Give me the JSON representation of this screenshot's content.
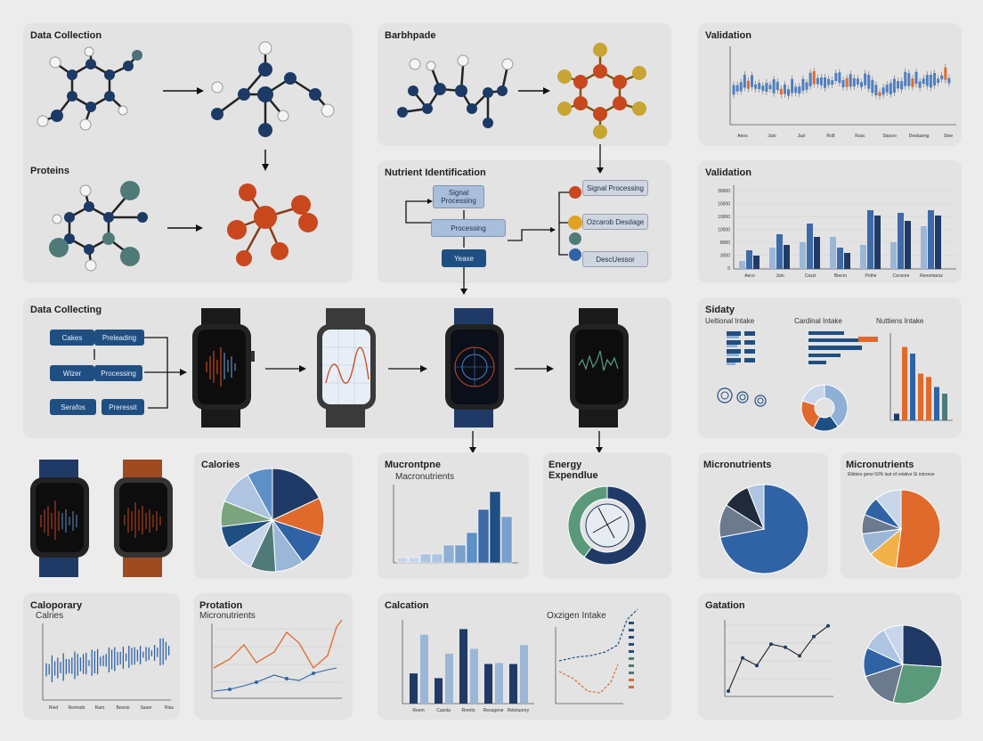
{
  "panels": {
    "data_collection": {
      "title": "Data Collection"
    },
    "proteins": {
      "title": "Proteins"
    },
    "barbhpade": {
      "title": "Barbhpade"
    },
    "nutrient_identification": {
      "title": "Nutrient Identification",
      "left_boxes": [
        "Signal Processing",
        "Processing",
        "Yeaxe"
      ],
      "right_boxes": [
        "Signal Processing",
        "Ozcarob Desdage",
        "DescUessor"
      ]
    },
    "validation_line": {
      "title": "Validation",
      "x_labels": [
        "Aeos",
        "Juto",
        "Jazi",
        "Ro8",
        "Rzac",
        "Stacoo",
        "Desbaeng",
        "Stee"
      ]
    },
    "validation_bar": {
      "title": "Validation",
      "categories": [
        "Aeco",
        "Juto",
        "Cezzi",
        "Biecro",
        "Pothe",
        "Cenzore",
        "Renomaroz"
      ],
      "y_labels": [
        "30000",
        "10000",
        "10000",
        "10000",
        "8000",
        "3000",
        "0"
      ]
    },
    "data_collecting": {
      "title": "Data Collecting",
      "boxes": [
        "Cakes",
        "Preleading",
        "Wizer",
        "Processing",
        "Serafos",
        "Preressit"
      ]
    },
    "sidaty": {
      "title": "Sidaty",
      "sub1": "Ueltional Intake",
      "sub2": "Cardinal Intake",
      "sub3": "Nuttiens Intake"
    },
    "calories": {
      "title": "Calories"
    },
    "micronutrients_hist": {
      "title": "Mucrontpne",
      "subtitle": "Macronutrients"
    },
    "energy": {
      "title": "Energy",
      "subtitle": "Expendlue"
    },
    "micronutrients_pie1": {
      "title": "Micronutrients"
    },
    "micronutrients_pie2": {
      "title": "Micronutrients",
      "subtitle": "Elbbies gene 50% last of relative Si intorese"
    },
    "caloporary": {
      "title": "Caloporary",
      "subtitle": "Calries",
      "x_labels": [
        "Ried",
        "Remodo",
        "Raro",
        "Bessio",
        "Saser",
        "Rias"
      ]
    },
    "protation": {
      "title": "Protation",
      "subtitle": "Micronutrients"
    },
    "calcation": {
      "title": "Calcation",
      "x_labels": [
        "Reem",
        "Cazola",
        "Rrento",
        "Reougene",
        "Reletuorey"
      ]
    },
    "oxygen_intake": {
      "title": "Oxzigen Intake"
    },
    "gatation": {
      "title": "Gatation"
    }
  },
  "chart_data": [
    {
      "type": "line",
      "title": "Validation",
      "categories": [
        "Aeos",
        "Juto",
        "Jazi",
        "Ro8",
        "Rzac",
        "Stacoo",
        "Desbaeng",
        "Stee"
      ]
    },
    {
      "type": "bar",
      "title": "Validation",
      "categories": [
        "Aeco",
        "Juto",
        "Cezzi",
        "Biecro",
        "Pothe",
        "Cenzore",
        "Renomaroz"
      ],
      "series": [
        {
          "values": [
            3000,
            8000,
            10000,
            12000,
            9000,
            10000,
            16000
          ]
        },
        {
          "values": [
            7000,
            13000,
            17000,
            8000,
            22000,
            21000,
            22000
          ]
        },
        {
          "values": [
            5000,
            9000,
            12000,
            6000,
            20000,
            18000,
            20000
          ]
        }
      ],
      "ylim": [
        0,
        30000
      ]
    },
    {
      "type": "bar",
      "title": "Nuttiens Intake",
      "values": [
        2,
        22,
        20,
        14,
        13,
        10,
        8
      ]
    },
    {
      "type": "pie",
      "title": "Calories",
      "values": [
        18,
        12,
        10,
        9,
        8,
        9,
        7,
        8,
        11,
        8
      ]
    },
    {
      "type": "pie",
      "title": "Micronutrients",
      "values": [
        72,
        12,
        10,
        6
      ]
    },
    {
      "type": "pie",
      "title": "Micronutrients",
      "values": [
        52,
        12,
        9,
        8,
        8,
        11
      ]
    },
    {
      "type": "bar",
      "title": "Calcation",
      "categories": [
        "Reem",
        "Cazola",
        "Rrento",
        "Reougene",
        "Reletuorey"
      ],
      "series": [
        {
          "values": [
            3.2,
            2.7,
            7.9,
            4.2,
            4.2
          ]
        },
        {
          "values": [
            7.3,
            5.3,
            5.8,
            4.3,
            6.2
          ]
        }
      ]
    },
    {
      "type": "line",
      "title": "Gatation",
      "values": [
        0.5,
        3.6,
        2.9,
        4.9,
        4.6,
        3.8,
        5.6,
        6.6
      ]
    },
    {
      "type": "pie",
      "title": "Gatation",
      "values": [
        26,
        28,
        16,
        12,
        10,
        8
      ]
    }
  ]
}
